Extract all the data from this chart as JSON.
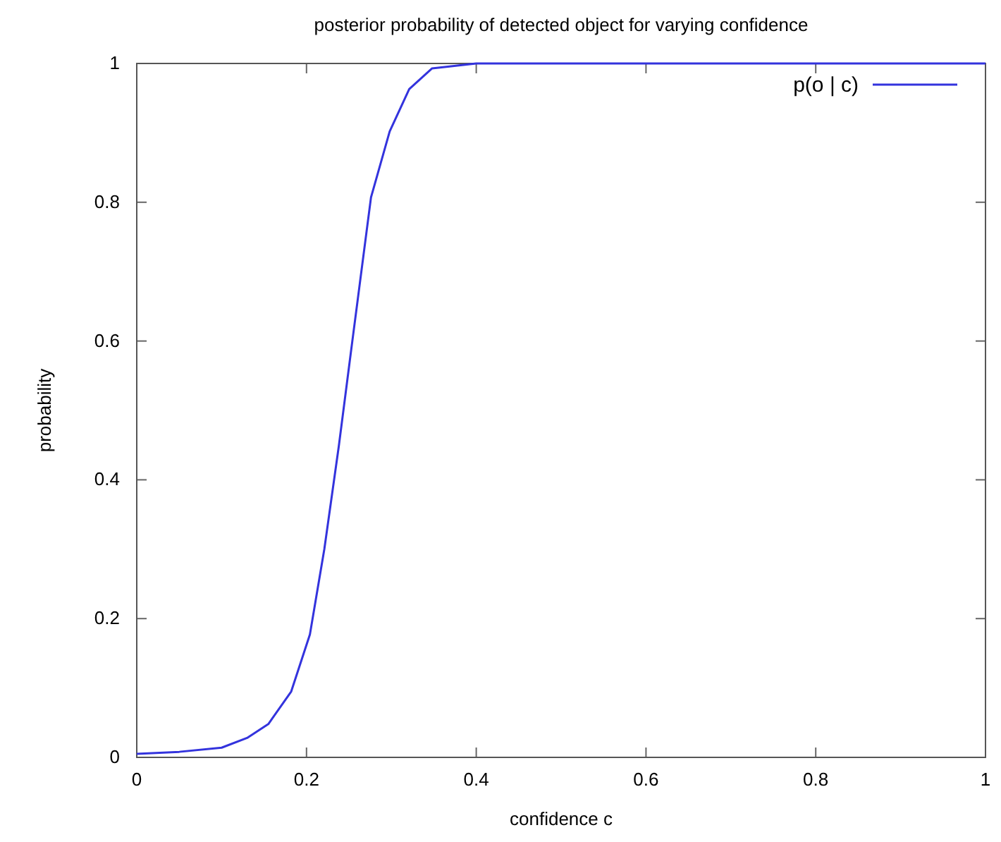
{
  "chart_data": {
    "type": "line",
    "title": "posterior probability of detected object for varying confidence",
    "xlabel": "confidence c",
    "ylabel": "probability",
    "x": [
      0,
      0.05,
      0.1,
      0.13,
      0.155,
      0.182,
      0.204,
      0.221,
      0.238,
      0.254,
      0.276,
      0.298,
      0.321,
      0.348,
      0.4,
      0.5,
      0.7,
      1
    ],
    "series": [
      {
        "name": "p(o | c)",
        "color": "#3333dd",
        "values": [
          0.005,
          0.008,
          0.014,
          0.028,
          0.048,
          0.095,
          0.177,
          0.3,
          0.448,
          0.6,
          0.807,
          0.902,
          0.963,
          0.993,
          1,
          1,
          1,
          1
        ]
      }
    ],
    "xlim": [
      0,
      1
    ],
    "ylim": [
      0,
      1
    ],
    "xticks": [
      0,
      0.2,
      0.4,
      0.6,
      0.8,
      1
    ],
    "yticks": [
      0,
      0.2,
      0.4,
      0.6,
      0.8,
      1
    ],
    "legend": "top right",
    "grid": false
  }
}
